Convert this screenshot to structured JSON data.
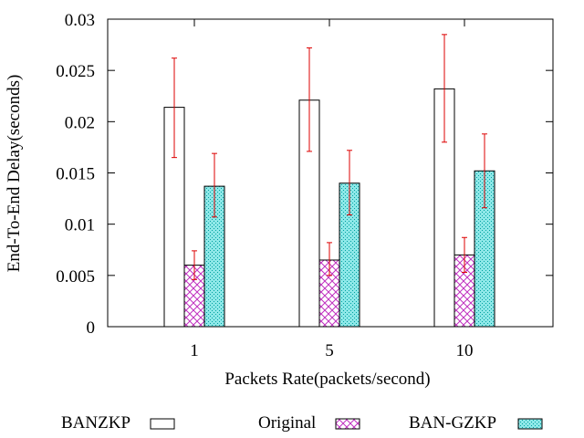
{
  "chart_data": {
    "type": "bar",
    "title": "",
    "xlabel": "Packets Rate(packets/second)",
    "ylabel": "End-To-End Delay(seconds)",
    "ylim": [
      0,
      0.03
    ],
    "yticks": [
      "0",
      "0.005",
      "0.01",
      "0.015",
      "0.02",
      "0.025",
      "0.03"
    ],
    "categories": [
      "1",
      "5",
      "10"
    ],
    "grid": false,
    "legend_position": "bottom",
    "series": [
      {
        "name": "BANZKP",
        "values": [
          0.0214,
          0.0221,
          0.0232
        ],
        "error_low": [
          0.0165,
          0.0171,
          0.018
        ],
        "error_high": [
          0.0262,
          0.0272,
          0.0285
        ],
        "pattern": "empty",
        "color": "#000000"
      },
      {
        "name": "Original",
        "values": [
          0.006,
          0.0065,
          0.007
        ],
        "error_low": [
          0.0046,
          0.005,
          0.0053
        ],
        "error_high": [
          0.0074,
          0.0082,
          0.0087
        ],
        "pattern": "crosshatch",
        "color": "#cc33cc"
      },
      {
        "name": "BAN-GZKP",
        "values": [
          0.0137,
          0.014,
          0.0152
        ],
        "error_low": [
          0.0107,
          0.0109,
          0.0116
        ],
        "error_high": [
          0.0169,
          0.0172,
          0.0188
        ],
        "pattern": "dotted",
        "color": "#00bbbb"
      }
    ],
    "error_bar_color": "#dd0000"
  }
}
